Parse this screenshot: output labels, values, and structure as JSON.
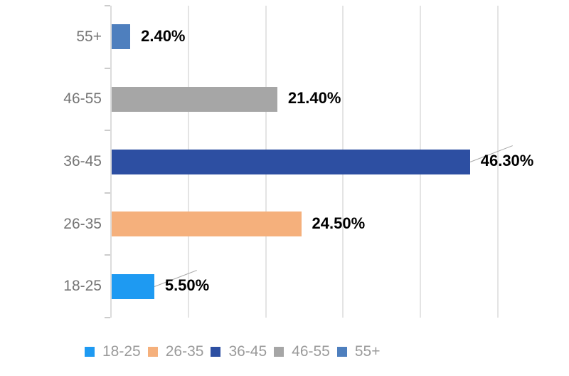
{
  "chart_data": {
    "type": "bar",
    "orientation": "horizontal",
    "title": "",
    "xlabel": "",
    "ylabel": "",
    "categories": [
      "55+",
      "46-55",
      "36-45",
      "26-35",
      "18-25"
    ],
    "values": [
      2.4,
      21.4,
      46.3,
      24.5,
      5.5
    ],
    "value_labels": [
      "2.40%",
      "21.40%",
      "46.30%",
      "24.50%",
      "5.50%"
    ],
    "bar_colors": [
      "#4e7fbe",
      "#a6a6a6",
      "#2d4fa2",
      "#f5b07c",
      "#1e9af2"
    ],
    "callout_lines": [
      false,
      false,
      true,
      false,
      true
    ],
    "xlim": [
      0,
      50
    ],
    "grid_step": 10,
    "grid": true,
    "legend_position": "bottom",
    "legend": [
      {
        "label": "18-25",
        "color": "#1e9af2"
      },
      {
        "label": "26-35",
        "color": "#f5b07c"
      },
      {
        "label": "36-45",
        "color": "#2d4fa2"
      },
      {
        "label": "46-55",
        "color": "#a6a6a6"
      },
      {
        "label": "55+",
        "color": "#4e7fbe"
      }
    ]
  },
  "colors": {
    "background": "#ffffff",
    "gridline": "#e4e4e4",
    "axis": "#dcdcdc",
    "tick": "#cccccc",
    "category_label": "#757575",
    "value_label": "#000000",
    "legend_label": "#9a9a9a",
    "leader_line": "#a8a8a8"
  }
}
